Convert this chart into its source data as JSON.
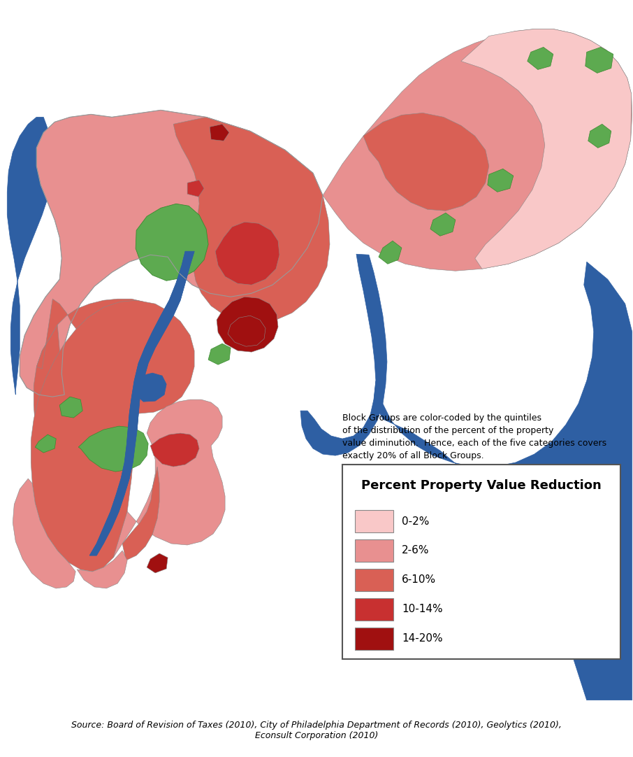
{
  "source_text": "Source: Board of Revision of Taxes (2010), City of Philadelphia Department of Records (2010), Geolytics (2010),\nEconsult Corporation (2010)",
  "annotation_text": "Block Groups are color-coded by the quintiles\nof the distribution of the percent of the property\nvalue diminution.  Hence, each of the five categories covers\nexactly 20% of all Block Groups.",
  "legend_title": "Percent Property Value Reduction",
  "legend_items": [
    {
      "label": "0-2%",
      "color": "#F9C8C8"
    },
    {
      "label": "2-6%",
      "color": "#E89090"
    },
    {
      "label": "6-10%",
      "color": "#D96055"
    },
    {
      "label": "10-14%",
      "color": "#C83030"
    },
    {
      "label": "14-20%",
      "color": "#A01010"
    }
  ],
  "water_color": "#2E5FA3",
  "park_color": "#5DAA50",
  "edge_color": "#888888",
  "background": "#FFFFFF",
  "figsize": [
    9.06,
    10.82
  ],
  "dpi": 100
}
